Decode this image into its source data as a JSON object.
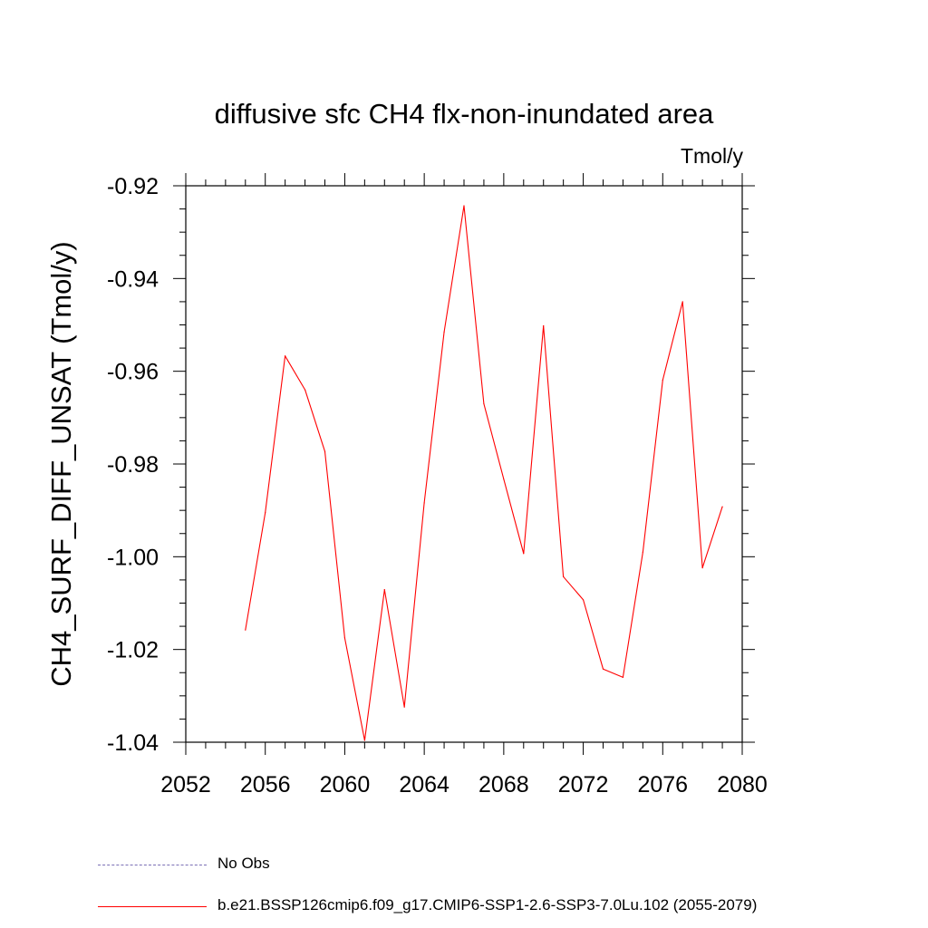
{
  "chart_data": {
    "type": "line",
    "title": "diffusive sfc CH4 flx-non-inundated area",
    "units": "Tmol/y",
    "ylabel": "CH4_SURF_DIFF_UNSAT  (Tmol/y)",
    "xlabel": "",
    "xlim": [
      2052,
      2080
    ],
    "ylim": [
      -1.04,
      -0.92
    ],
    "xticks": [
      "2052",
      "2056",
      "2060",
      "2064",
      "2068",
      "2072",
      "2076",
      "2080"
    ],
    "yticks": [
      "-0.92",
      "-0.94",
      "-0.96",
      "-0.98",
      "-1.00",
      "-1.02",
      "-1.04"
    ],
    "grid": false,
    "legend_position": "bottom",
    "series": [
      {
        "name": "b.e21.BSSP126cmip6.f09_g17.CMIP6-SSP1-2.6-SSP3-7.0Lu.102 (2055-2079)",
        "color": "#ff0000",
        "x": [
          2055,
          2056,
          2057,
          2058,
          2059,
          2060,
          2061,
          2062,
          2063,
          2064,
          2065,
          2066,
          2067,
          2068,
          2069,
          2070,
          2071,
          2072,
          2073,
          2074,
          2075,
          2076,
          2077,
          2078,
          2079
        ],
        "y": [
          -1.0158,
          -0.9905,
          -0.9567,
          -0.964,
          -0.9773,
          -1.0175,
          -1.0396,
          -1.0071,
          -1.0324,
          -0.9884,
          -0.9515,
          -0.9243,
          -0.967,
          -0.9833,
          -0.9993,
          -0.9502,
          -1.0043,
          -1.0093,
          -1.0242,
          -1.026,
          -0.999,
          -0.9619,
          -0.945,
          -1.0024,
          -0.9892
        ]
      }
    ],
    "legend": [
      {
        "label": "No Obs",
        "color": "#7b6fb5",
        "style": "dashed"
      },
      {
        "label": "b.e21.BSSP126cmip6.f09_g17.CMIP6-SSP1-2.6-SSP3-7.0Lu.102 (2055-2079)",
        "color": "#ff0000",
        "style": "solid"
      }
    ]
  }
}
